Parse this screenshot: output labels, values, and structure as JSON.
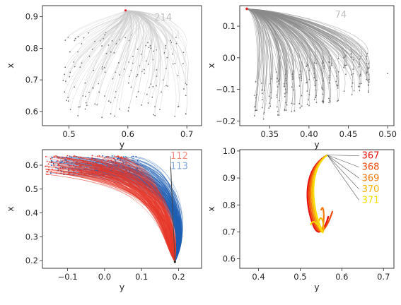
{
  "chart_data": [
    {
      "type": "line",
      "panel": "top-left",
      "xlabel": "y",
      "ylabel": "x",
      "xlim": [
        0.455,
        0.725
      ],
      "ylim": [
        0.555,
        0.935
      ],
      "xticks": [
        "0.5",
        "0.6",
        "0.7"
      ],
      "xtick_values": [
        0.5,
        0.6,
        0.7
      ],
      "yticks": [
        "0.6",
        "0.7",
        "0.8",
        "0.9"
      ],
      "ytick_values": [
        0.6,
        0.7,
        0.8,
        0.9
      ],
      "origin": [
        0.596,
        0.92
      ],
      "annotations": [
        {
          "label": "214",
          "color": "#bfbfbf",
          "pos": [
            0.645,
            0.888
          ]
        }
      ],
      "line_color": "#c8c8c8",
      "point_color": "#6e6e6e",
      "origin_color": "#e02020"
    },
    {
      "type": "line",
      "panel": "top-right",
      "xlabel": "y",
      "ylabel": "x",
      "xlim": [
        0.312,
        0.508
      ],
      "ylim": [
        -0.215,
        0.165
      ],
      "xticks": [
        "0.35",
        "0.40",
        "0.45",
        "0.50"
      ],
      "xtick_values": [
        0.35,
        0.4,
        0.45,
        0.5
      ],
      "yticks": [
        "−0.2",
        "−0.1",
        "0.0",
        "0.1"
      ],
      "ytick_values": [
        -0.2,
        -0.1,
        0.0,
        0.1
      ],
      "origin": [
        0.321,
        0.155
      ],
      "annotations": [
        {
          "label": "74",
          "color": "#bfbfbf",
          "pos": [
            0.433,
            0.127
          ]
        }
      ],
      "line_color": "#8c8c8c",
      "point_color": "#6e6e6e",
      "origin_color": "#e02020"
    },
    {
      "type": "line",
      "panel": "bottom-left",
      "xlabel": "y",
      "ylabel": "x",
      "xlim": [
        -0.168,
        0.262
      ],
      "ylim": [
        0.168,
        0.665
      ],
      "xticks": [
        "−0.1",
        "0.0",
        "0.1",
        "0.2"
      ],
      "xtick_values": [
        -0.1,
        0.0,
        0.1,
        0.2
      ],
      "yticks": [
        "0.2",
        "0.3",
        "0.4",
        "0.5",
        "0.6"
      ],
      "ytick_values": [
        0.2,
        0.3,
        0.4,
        0.5,
        0.6
      ],
      "origin": [
        0.19,
        0.195
      ],
      "annotations": [
        {
          "label": "112",
          "color": "#f08c84",
          "pos": [
            0.178,
            0.626
          ]
        },
        {
          "label": "113",
          "color": "#84a8d8",
          "pos": [
            0.178,
            0.583
          ]
        }
      ],
      "series": [
        {
          "name": "112",
          "color": "#e8382a"
        },
        {
          "name": "113",
          "color": "#1f5fb4"
        }
      ]
    },
    {
      "type": "line",
      "panel": "bottom-right",
      "xlabel": "y",
      "ylabel": "x",
      "xlim": [
        0.355,
        0.725
      ],
      "ylim": [
        0.565,
        1.005
      ],
      "xticks": [
        "0.4",
        "0.5",
        "0.6",
        "0.7"
      ],
      "xtick_values": [
        0.4,
        0.5,
        0.6,
        0.7
      ],
      "yticks": [
        "0.6",
        "0.7",
        "0.8",
        "0.9",
        "1.0"
      ],
      "ytick_values": [
        0.6,
        0.7,
        0.8,
        0.9,
        1.0
      ],
      "series": [
        {
          "name": "367",
          "color": "#e61010",
          "end": [
            0.565,
            0.745
          ]
        },
        {
          "name": "368",
          "color": "#f04a0a",
          "end": [
            0.575,
            0.765
          ]
        },
        {
          "name": "369",
          "color": "#f47a10",
          "end": [
            0.55,
            0.78
          ]
        },
        {
          "name": "370",
          "color": "#f8b400",
          "end": [
            0.545,
            0.74
          ]
        },
        {
          "name": "371",
          "color": "#f8dc00",
          "end": [
            0.525,
            0.725
          ]
        }
      ],
      "annotations": [
        {
          "label": "367",
          "color": "#e61010",
          "pos": [
            0.648,
            0.972
          ]
        },
        {
          "label": "368",
          "color": "#f04a0a",
          "pos": [
            0.648,
            0.93
          ]
        },
        {
          "label": "369",
          "color": "#f47a10",
          "pos": [
            0.648,
            0.889
          ]
        },
        {
          "label": "370",
          "color": "#f8b400",
          "pos": [
            0.648,
            0.848
          ]
        },
        {
          "label": "371",
          "color": "#f8dc00",
          "pos": [
            0.648,
            0.807
          ]
        }
      ]
    }
  ]
}
